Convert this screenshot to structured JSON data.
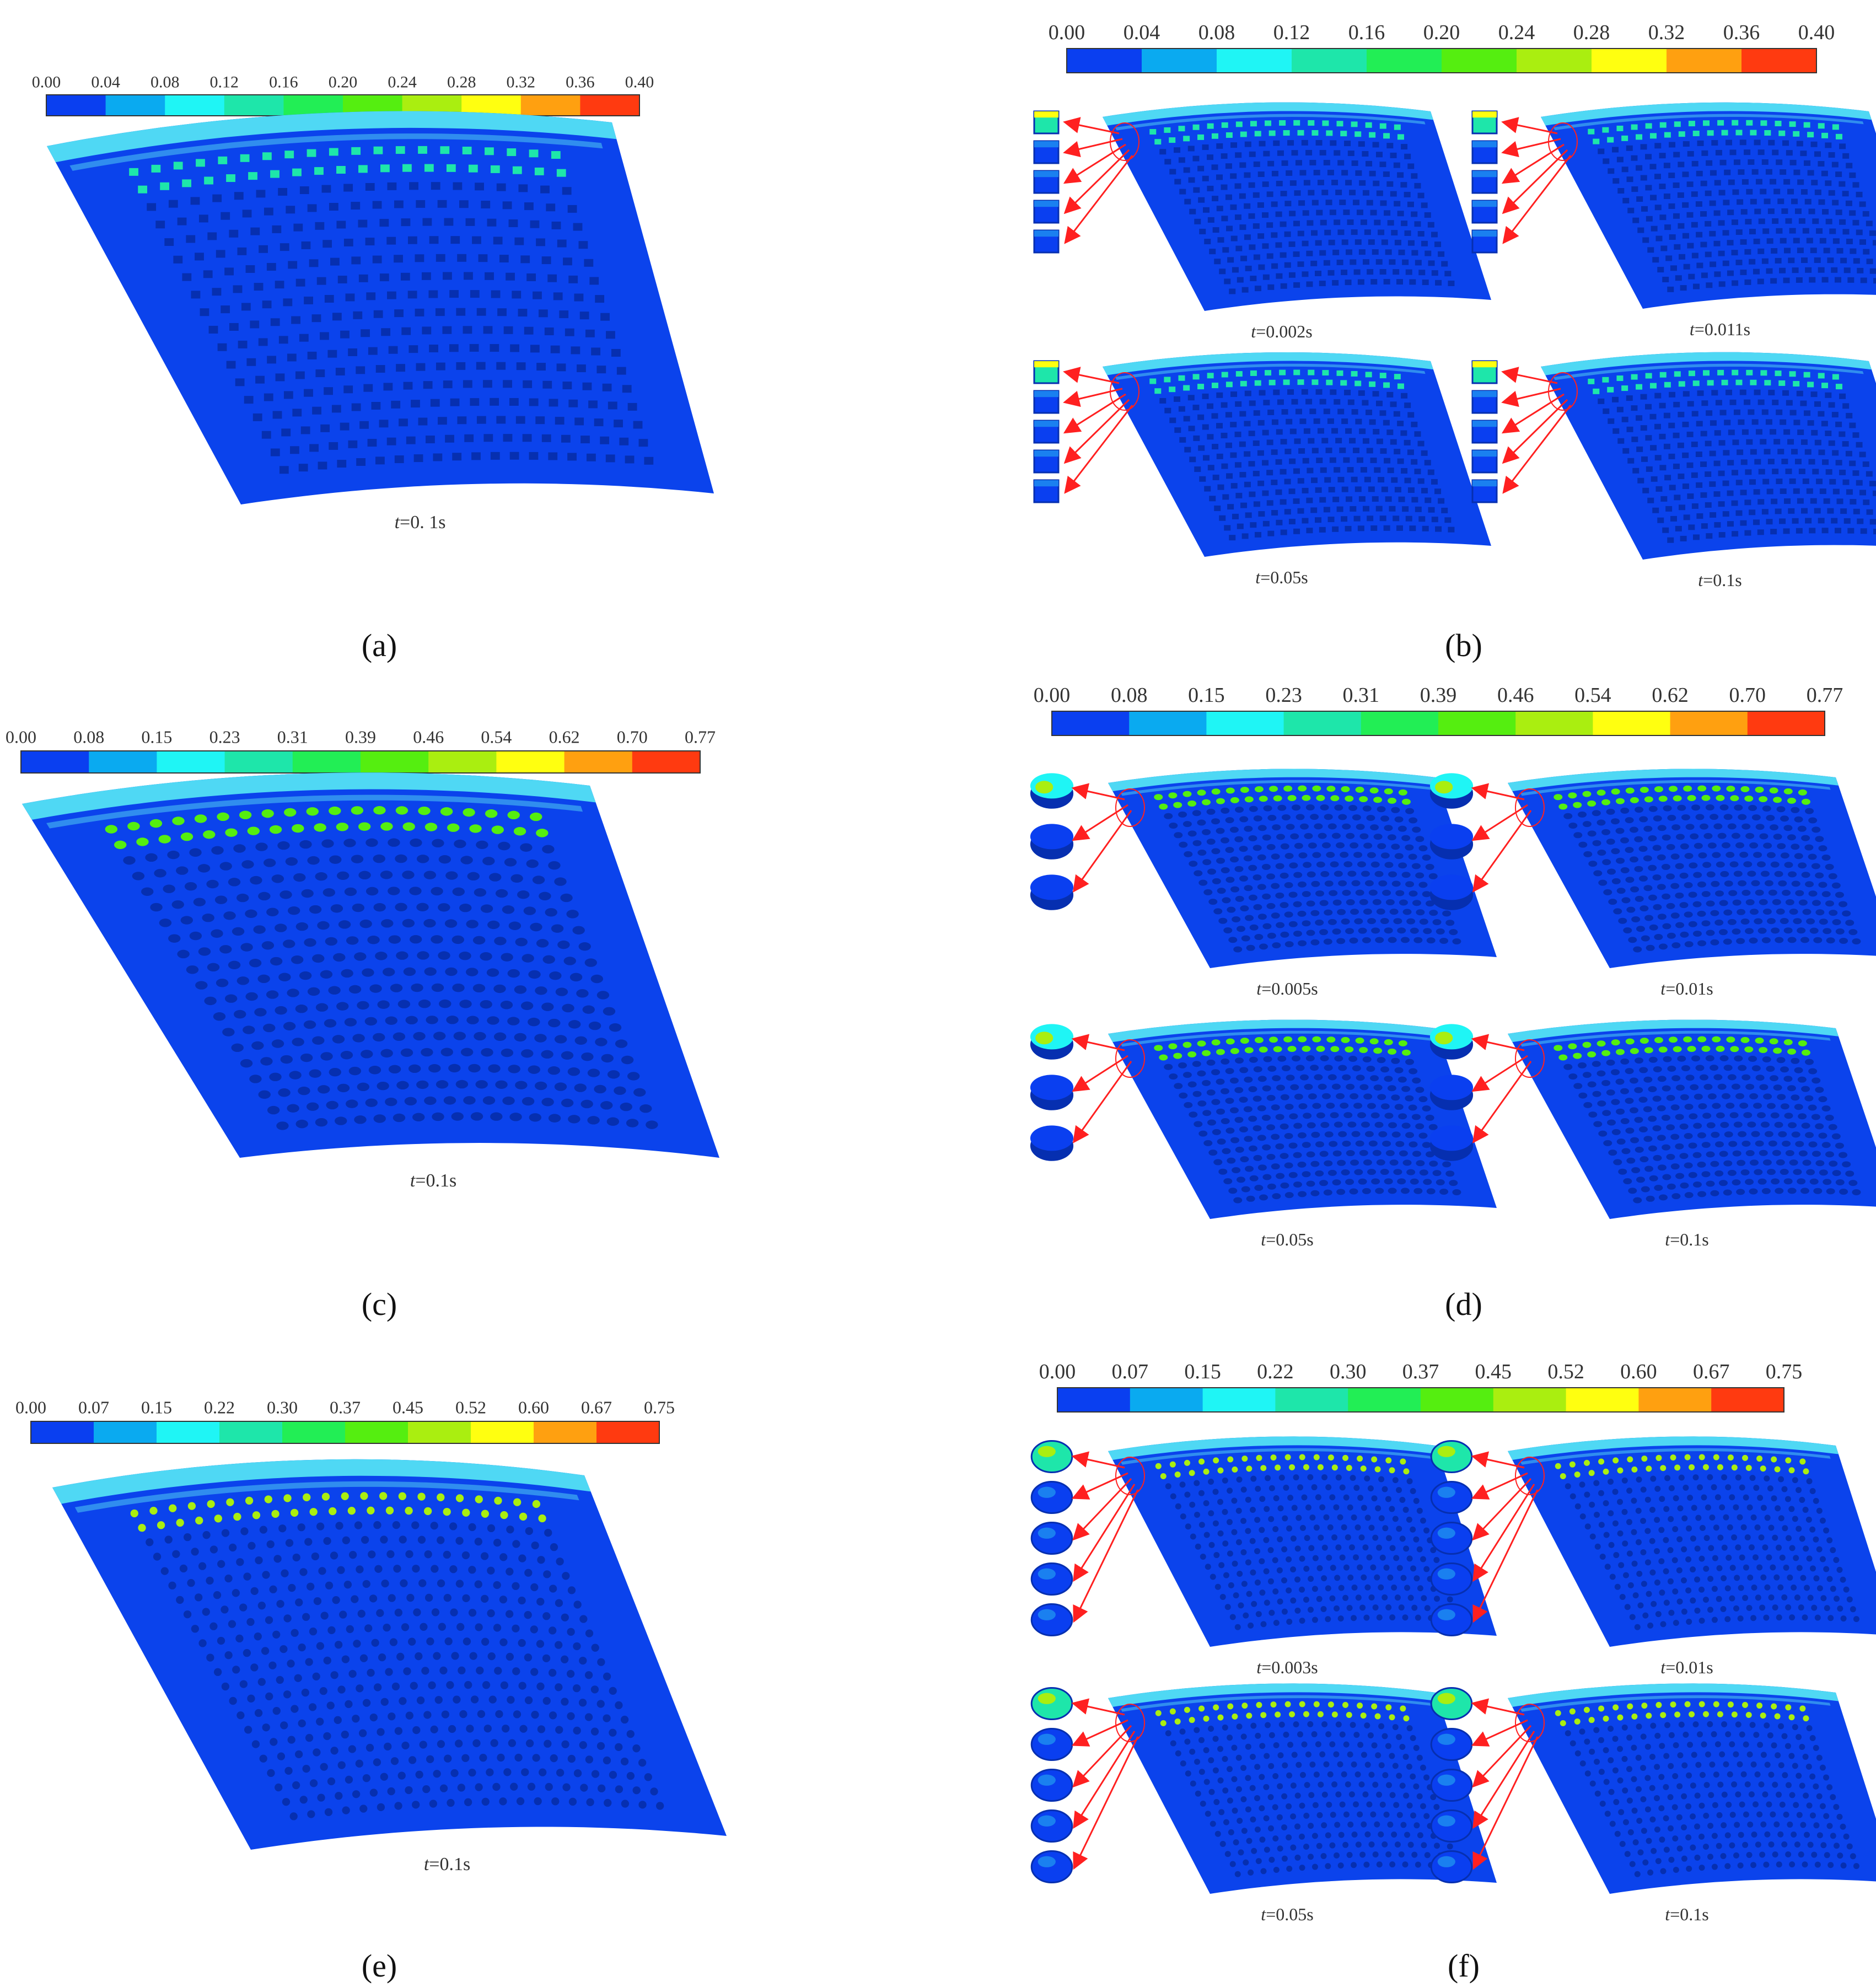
{
  "colors": {
    "scale": [
      "#0a3ff0",
      "#0aaaf0",
      "#1ff5f5",
      "#1ee6aa",
      "#22ee55",
      "#55ee10",
      "#aaee10",
      "#ffff10",
      "#ffa010",
      "#ff3a10"
    ],
    "plate": "#0b43ec",
    "plate_edge": "#4fd8f4",
    "boss": "#062fb0",
    "arrow": "#ff2020"
  },
  "panels": [
    {
      "label": "(a)",
      "bar_ticks": [
        "0.00",
        "0.04",
        "0.08",
        "0.12",
        "0.16",
        "0.20",
        "0.24",
        "0.28",
        "0.32",
        "0.36",
        "0.40"
      ],
      "times": [
        "t=0. 1s"
      ],
      "boss_shape": "square"
    },
    {
      "label": "(b)",
      "bar_ticks": [
        "0.00",
        "0.04",
        "0.08",
        "0.12",
        "0.16",
        "0.20",
        "0.24",
        "0.28",
        "0.32",
        "0.36",
        "0.40"
      ],
      "times": [
        "t=0.002s",
        "t=0.011s",
        "t=0.05s",
        "t=0.1s"
      ],
      "boss_shape": "square"
    },
    {
      "label": "(c)",
      "bar_ticks": [
        "0.00",
        "0.08",
        "0.15",
        "0.23",
        "0.31",
        "0.39",
        "0.46",
        "0.54",
        "0.62",
        "0.70",
        "0.77"
      ],
      "times": [
        "t=0.1s"
      ],
      "boss_shape": "cylinder"
    },
    {
      "label": "(d)",
      "bar_ticks": [
        "0.00",
        "0.08",
        "0.15",
        "0.23",
        "0.31",
        "0.39",
        "0.46",
        "0.54",
        "0.62",
        "0.70",
        "0.77"
      ],
      "times": [
        "t=0.005s",
        "t=0.01s",
        "t=0.05s",
        "t=0.1s"
      ],
      "boss_shape": "cylinder"
    },
    {
      "label": "(e)",
      "bar_ticks": [
        "0.00",
        "0.07",
        "0.15",
        "0.22",
        "0.30",
        "0.37",
        "0.45",
        "0.52",
        "0.60",
        "0.67",
        "0.75"
      ],
      "times": [
        "t=0.1s"
      ],
      "boss_shape": "hemisphere"
    },
    {
      "label": "(f)",
      "bar_ticks": [
        "0.00",
        "0.07",
        "0.15",
        "0.22",
        "0.30",
        "0.37",
        "0.45",
        "0.52",
        "0.60",
        "0.67",
        "0.75"
      ],
      "times": [
        "t=0.003s",
        "t=0.01s",
        "t=0.05s",
        "t=0.1s"
      ],
      "boss_shape": "hemisphere"
    }
  ]
}
